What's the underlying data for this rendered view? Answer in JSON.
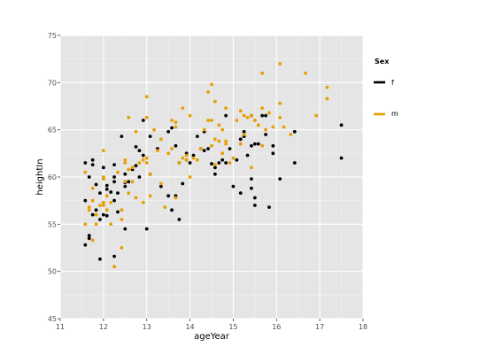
{
  "chart_data": {
    "type": "scatter",
    "xlabel": "ageYear",
    "ylabel": "heightIn",
    "xlim": [
      11,
      18
    ],
    "ylim": [
      45,
      75
    ],
    "x_ticks": [
      11,
      12,
      13,
      14,
      15,
      16,
      17,
      18
    ],
    "y_ticks": [
      45,
      50,
      55,
      60,
      65,
      70,
      75
    ],
    "grid": true,
    "legend": {
      "title": "Sex",
      "position": "right",
      "entries": [
        {
          "label": "f",
          "color": "#000000"
        },
        {
          "label": "m",
          "color": "#E69F00"
        }
      ]
    },
    "series": [
      {
        "name": "f",
        "color": "#000000",
        "points": [
          [
            11.58,
            61.5
          ],
          [
            11.58,
            52.8
          ],
          [
            11.58,
            57.5
          ],
          [
            11.67,
            53.8
          ],
          [
            11.67,
            60.0
          ],
          [
            11.67,
            53.5
          ],
          [
            11.75,
            61.8
          ],
          [
            11.75,
            61.3
          ],
          [
            11.75,
            56.0
          ],
          [
            11.83,
            59.2
          ],
          [
            11.83,
            56.5
          ],
          [
            11.92,
            51.3
          ],
          [
            11.92,
            55.5
          ],
          [
            11.92,
            58.3
          ],
          [
            12.0,
            61.0
          ],
          [
            12.0,
            56.0
          ],
          [
            12.08,
            59.1
          ],
          [
            12.08,
            58.7
          ],
          [
            12.08,
            55.9
          ],
          [
            12.17,
            58.4
          ],
          [
            12.25,
            51.6
          ],
          [
            12.25,
            61.3
          ],
          [
            12.25,
            60.0
          ],
          [
            12.25,
            59.5
          ],
          [
            12.25,
            57.5
          ],
          [
            12.33,
            58.3
          ],
          [
            12.33,
            56.3
          ],
          [
            12.42,
            64.3
          ],
          [
            12.5,
            54.5
          ],
          [
            12.5,
            60.3
          ],
          [
            12.5,
            59.4
          ],
          [
            12.5,
            59.0
          ],
          [
            12.58,
            59.5
          ],
          [
            12.67,
            60.8
          ],
          [
            12.75,
            61.2
          ],
          [
            12.75,
            63.2
          ],
          [
            12.83,
            62.8
          ],
          [
            12.83,
            60.0
          ],
          [
            12.92,
            66.0
          ],
          [
            12.92,
            62.3
          ],
          [
            13.0,
            54.5
          ],
          [
            13.08,
            64.3
          ],
          [
            13.08,
            60.3
          ],
          [
            13.25,
            63.0
          ],
          [
            13.33,
            59.0
          ],
          [
            13.5,
            58.0
          ],
          [
            13.5,
            64.8
          ],
          [
            13.58,
            56.5
          ],
          [
            13.58,
            65.2
          ],
          [
            13.67,
            63.3
          ],
          [
            13.67,
            58.0
          ],
          [
            13.75,
            55.5
          ],
          [
            13.75,
            61.5
          ],
          [
            13.83,
            59.3
          ],
          [
            13.92,
            61.8
          ],
          [
            13.92,
            62.5
          ],
          [
            14.0,
            61.5
          ],
          [
            14.08,
            62.3
          ],
          [
            14.17,
            64.3
          ],
          [
            14.25,
            63.0
          ],
          [
            14.33,
            62.8
          ],
          [
            14.33,
            64.8
          ],
          [
            14.42,
            63.0
          ],
          [
            14.5,
            61.4
          ],
          [
            14.58,
            60.3
          ],
          [
            14.58,
            61.0
          ],
          [
            14.67,
            61.5
          ],
          [
            14.75,
            61.8
          ],
          [
            14.83,
            61.5
          ],
          [
            14.83,
            66.5
          ],
          [
            14.92,
            63.0
          ],
          [
            15.0,
            59.0
          ],
          [
            15.08,
            61.8
          ],
          [
            15.17,
            64.0
          ],
          [
            15.17,
            58.3
          ],
          [
            15.25,
            64.3
          ],
          [
            15.25,
            64.8
          ],
          [
            15.33,
            62.3
          ],
          [
            15.42,
            66.5
          ],
          [
            15.42,
            63.3
          ],
          [
            15.42,
            58.8
          ],
          [
            15.42,
            59.8
          ],
          [
            15.5,
            57.0
          ],
          [
            15.5,
            63.5
          ],
          [
            15.5,
            57.8
          ],
          [
            15.58,
            63.5
          ],
          [
            15.67,
            66.5
          ],
          [
            15.75,
            66.5
          ],
          [
            15.75,
            64.5
          ],
          [
            15.83,
            56.8
          ],
          [
            15.92,
            63.3
          ],
          [
            15.92,
            62.5
          ],
          [
            16.08,
            59.8
          ],
          [
            16.42,
            64.8
          ],
          [
            16.42,
            61.5
          ],
          [
            17.5,
            65.5
          ],
          [
            17.5,
            62.0
          ]
        ]
      },
      {
        "name": "m",
        "color": "#E69F00",
        "points": [
          [
            11.58,
            55.0
          ],
          [
            11.58,
            60.5
          ],
          [
            11.67,
            56.5
          ],
          [
            11.67,
            56.8
          ],
          [
            11.75,
            53.3
          ],
          [
            11.75,
            57.5
          ],
          [
            11.75,
            58.8
          ],
          [
            11.83,
            56.0
          ],
          [
            11.83,
            55.0
          ],
          [
            11.92,
            57.0
          ],
          [
            12.0,
            59.8
          ],
          [
            12.0,
            60.0
          ],
          [
            12.0,
            62.8
          ],
          [
            12.0,
            57.3
          ],
          [
            12.0,
            57.0
          ],
          [
            12.08,
            56.5
          ],
          [
            12.08,
            58.0
          ],
          [
            12.17,
            55.0
          ],
          [
            12.17,
            57.3
          ],
          [
            12.25,
            50.5
          ],
          [
            12.33,
            60.5
          ],
          [
            12.42,
            55.5
          ],
          [
            12.42,
            52.5
          ],
          [
            12.42,
            56.5
          ],
          [
            12.5,
            61.8
          ],
          [
            12.5,
            61.5
          ],
          [
            12.5,
            59.5
          ],
          [
            12.58,
            66.3
          ],
          [
            12.58,
            60.8
          ],
          [
            12.58,
            58.3
          ],
          [
            12.67,
            59.5
          ],
          [
            12.67,
            61.0
          ],
          [
            12.75,
            57.8
          ],
          [
            12.75,
            64.8
          ],
          [
            12.83,
            61.5
          ],
          [
            12.92,
            57.3
          ],
          [
            12.92,
            61.8
          ],
          [
            13.0,
            68.5
          ],
          [
            13.0,
            66.3
          ],
          [
            13.0,
            61.5
          ],
          [
            13.0,
            62.0
          ],
          [
            13.08,
            58.0
          ],
          [
            13.08,
            60.3
          ],
          [
            13.17,
            65.0
          ],
          [
            13.25,
            62.8
          ],
          [
            13.33,
            59.3
          ],
          [
            13.33,
            64.0
          ],
          [
            13.42,
            56.8
          ],
          [
            13.5,
            62.5
          ],
          [
            13.58,
            66.0
          ],
          [
            13.58,
            63.0
          ],
          [
            13.67,
            65.3
          ],
          [
            13.67,
            57.8
          ],
          [
            13.67,
            65.8
          ],
          [
            13.75,
            61.5
          ],
          [
            13.83,
            67.3
          ],
          [
            13.83,
            62.0
          ],
          [
            13.92,
            61.8
          ],
          [
            13.92,
            62.3
          ],
          [
            14.0,
            66.5
          ],
          [
            14.0,
            60.0
          ],
          [
            14.08,
            62.0
          ],
          [
            14.17,
            61.8
          ],
          [
            14.25,
            63.0
          ],
          [
            14.33,
            65.0
          ],
          [
            14.42,
            69.0
          ],
          [
            14.42,
            66.0
          ],
          [
            14.5,
            69.8
          ],
          [
            14.5,
            66.0
          ],
          [
            14.5,
            63.3
          ],
          [
            14.58,
            64.0
          ],
          [
            14.58,
            61.3
          ],
          [
            14.58,
            68.0
          ],
          [
            14.67,
            65.5
          ],
          [
            14.67,
            63.8
          ],
          [
            14.75,
            62.5
          ],
          [
            14.75,
            65.0
          ],
          [
            14.83,
            63.5
          ],
          [
            14.83,
            67.3
          ],
          [
            14.83,
            63.8
          ],
          [
            14.92,
            61.5
          ],
          [
            15.0,
            62.0
          ],
          [
            15.08,
            66.0
          ],
          [
            15.17,
            67.0
          ],
          [
            15.17,
            63.5
          ],
          [
            15.25,
            66.5
          ],
          [
            15.25,
            64.5
          ],
          [
            15.33,
            66.3
          ],
          [
            15.42,
            66.5
          ],
          [
            15.42,
            61.0
          ],
          [
            15.5,
            66.0
          ],
          [
            15.58,
            65.5
          ],
          [
            15.67,
            71.0
          ],
          [
            15.67,
            67.3
          ],
          [
            15.67,
            63.3
          ],
          [
            15.75,
            65.0
          ],
          [
            15.83,
            66.8
          ],
          [
            15.92,
            65.3
          ],
          [
            16.08,
            72.0
          ],
          [
            16.08,
            67.8
          ],
          [
            16.08,
            66.3
          ],
          [
            16.17,
            65.3
          ],
          [
            16.33,
            64.5
          ],
          [
            16.67,
            71.0
          ],
          [
            16.92,
            66.5
          ],
          [
            17.17,
            69.5
          ],
          [
            17.17,
            68.3
          ]
        ]
      }
    ]
  }
}
